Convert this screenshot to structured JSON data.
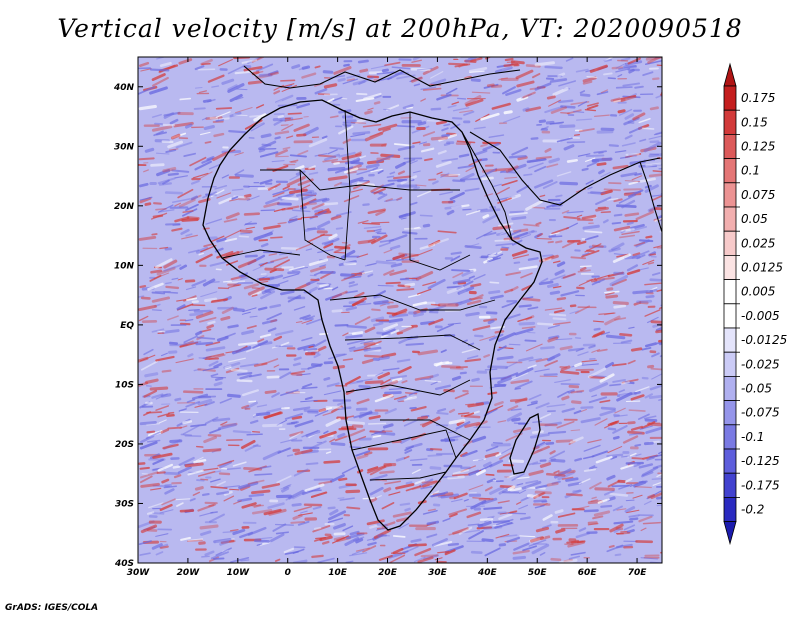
{
  "title": "Vertical velocity [m/s] at 200hPa, VT: 2020090518",
  "credit": "GrADS: IGES/COLA",
  "map": {
    "projection": "latlon",
    "lon_range": [
      -30,
      75
    ],
    "lat_range": [
      -40,
      45
    ],
    "lon_ticks": [
      {
        "value": -30,
        "label": "30W"
      },
      {
        "value": -20,
        "label": "20W"
      },
      {
        "value": -10,
        "label": "10W"
      },
      {
        "value": 0,
        "label": "0"
      },
      {
        "value": 10,
        "label": "10E"
      },
      {
        "value": 20,
        "label": "20E"
      },
      {
        "value": 30,
        "label": "30E"
      },
      {
        "value": 40,
        "label": "40E"
      },
      {
        "value": 50,
        "label": "50E"
      },
      {
        "value": 60,
        "label": "60E"
      },
      {
        "value": 70,
        "label": "70E"
      }
    ],
    "lat_ticks": [
      {
        "value": 40,
        "label": "40N"
      },
      {
        "value": 30,
        "label": "30N"
      },
      {
        "value": 20,
        "label": "20N"
      },
      {
        "value": 10,
        "label": "10N"
      },
      {
        "value": 0,
        "label": "EQ"
      },
      {
        "value": -10,
        "label": "10S"
      },
      {
        "value": -20,
        "label": "20S"
      },
      {
        "value": -30,
        "label": "30S"
      },
      {
        "value": -40,
        "label": "40S"
      }
    ],
    "field_colors": {
      "rising": "#d43c3c",
      "sinking": "#6a6ae0",
      "neutral": "#ffffff"
    }
  },
  "colorbar": {
    "levels": [
      {
        "label": "0.175",
        "color": "#c41e1e"
      },
      {
        "label": "0.15",
        "color": "#d23a3a"
      },
      {
        "label": "0.125",
        "color": "#dc5a5a"
      },
      {
        "label": "0.1",
        "color": "#e47676"
      },
      {
        "label": "0.075",
        "color": "#ec9393"
      },
      {
        "label": "0.05",
        "color": "#f2afaf"
      },
      {
        "label": "0.025",
        "color": "#f7caca"
      },
      {
        "label": "0.0125",
        "color": "#fbe3e3"
      },
      {
        "label": "0.005",
        "color": "#ffffff"
      },
      {
        "label": "-0.005",
        "color": "#ffffff"
      },
      {
        "label": "-0.0125",
        "color": "#e4e4fb"
      },
      {
        "label": "-0.025",
        "color": "#cbcbf6"
      },
      {
        "label": "-0.05",
        "color": "#b0b0f0"
      },
      {
        "label": "-0.075",
        "color": "#9595ea"
      },
      {
        "label": "-0.1",
        "color": "#7a7ae3"
      },
      {
        "label": "-0.125",
        "color": "#5e5edc"
      },
      {
        "label": "-0.175",
        "color": "#4242cf"
      },
      {
        "label": "-0.2",
        "color": "#2a2ac0"
      }
    ],
    "top_arrow_color": "#b01414",
    "bottom_arrow_color": "#1c1cae"
  }
}
